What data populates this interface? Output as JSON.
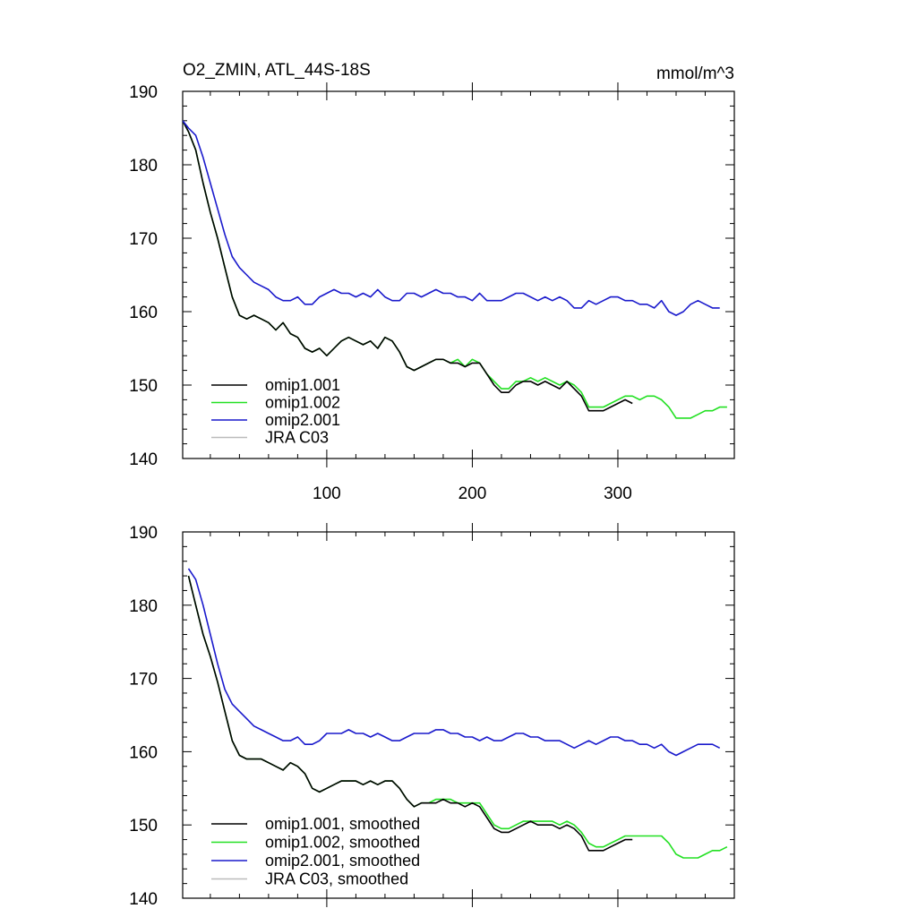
{
  "figure": {
    "title_left": "O2_ZMIN, ATL_44S-18S",
    "title_right": "mmol/m^3"
  },
  "colors": {
    "omip1.001": "#000000",
    "omip1.002": "#22e022",
    "omip2.001": "#1a1acc",
    "JRA C03": "#bbbbbb"
  },
  "chart_data": [
    {
      "type": "line",
      "title": "O2_ZMIN, ATL_44S-18S",
      "units": "mmol/m^3",
      "xlim": [
        1,
        380
      ],
      "ylim": [
        140,
        190
      ],
      "x_ticks": [
        100,
        200,
        300
      ],
      "x_tick_labels": [
        "100",
        "200",
        "300"
      ],
      "y_ticks": [
        140,
        150,
        160,
        170,
        180,
        190
      ],
      "y_tick_labels": [
        "140",
        "150",
        "160",
        "170",
        "180",
        "190"
      ],
      "legend_position": "bottom-left",
      "series": [
        {
          "name": "omip1.001",
          "color": "#000000",
          "x": [
            1,
            5,
            10,
            15,
            20,
            25,
            30,
            35,
            40,
            45,
            50,
            55,
            60,
            65,
            70,
            75,
            80,
            85,
            90,
            95,
            100,
            105,
            110,
            115,
            120,
            125,
            130,
            135,
            140,
            145,
            150,
            155,
            160,
            165,
            170,
            175,
            180,
            185,
            190,
            195,
            200,
            205,
            210,
            215,
            220,
            225,
            230,
            235,
            240,
            245,
            250,
            255,
            260,
            265,
            270,
            275,
            280,
            285,
            290,
            295,
            300,
            305,
            310
          ],
          "y": [
            186.0,
            184.5,
            182.0,
            177.5,
            173.5,
            170.0,
            166.0,
            162.0,
            159.5,
            159.0,
            159.5,
            159.0,
            158.5,
            157.5,
            158.5,
            157.0,
            156.5,
            155.0,
            154.5,
            155.0,
            154.0,
            155.0,
            156.0,
            156.5,
            156.0,
            155.5,
            156.0,
            155.0,
            156.5,
            156.0,
            154.5,
            152.5,
            152.0,
            152.5,
            153.0,
            153.5,
            153.5,
            153.0,
            153.0,
            152.5,
            153.0,
            153.0,
            151.5,
            150.0,
            149.0,
            149.0,
            150.0,
            150.5,
            150.5,
            150.0,
            150.5,
            150.0,
            149.5,
            150.5,
            149.5,
            148.5,
            146.5,
            146.5,
            146.5,
            147.0,
            147.5,
            148.0,
            147.5
          ]
        },
        {
          "name": "omip1.002",
          "color": "#22e022",
          "x": [
            1,
            5,
            10,
            15,
            20,
            25,
            30,
            35,
            40,
            45,
            50,
            55,
            60,
            65,
            70,
            75,
            80,
            85,
            90,
            95,
            100,
            105,
            110,
            115,
            120,
            125,
            130,
            135,
            140,
            145,
            150,
            155,
            160,
            165,
            170,
            175,
            180,
            185,
            190,
            195,
            200,
            205,
            210,
            215,
            220,
            225,
            230,
            235,
            240,
            245,
            250,
            255,
            260,
            265,
            270,
            275,
            280,
            285,
            290,
            295,
            300,
            305,
            310,
            315,
            320,
            325,
            330,
            335,
            340,
            345,
            350,
            355,
            360,
            365,
            370,
            375
          ],
          "y": [
            186.0,
            184.5,
            182.0,
            177.5,
            173.5,
            170.0,
            166.0,
            162.0,
            159.5,
            159.0,
            159.5,
            159.0,
            158.5,
            157.5,
            158.5,
            157.0,
            156.5,
            155.0,
            154.5,
            155.0,
            154.0,
            155.0,
            156.0,
            156.5,
            156.0,
            155.5,
            156.0,
            155.0,
            156.5,
            156.0,
            154.5,
            152.5,
            152.0,
            152.5,
            153.0,
            153.5,
            153.5,
            153.0,
            153.5,
            152.5,
            153.5,
            153.0,
            151.5,
            150.5,
            149.5,
            149.5,
            150.5,
            150.5,
            151.0,
            150.5,
            151.0,
            150.5,
            150.0,
            150.5,
            150.0,
            149.0,
            147.0,
            147.0,
            147.0,
            147.5,
            148.0,
            148.5,
            148.5,
            148.0,
            148.5,
            148.5,
            148.0,
            147.0,
            145.5,
            145.5,
            145.5,
            146.0,
            146.5,
            146.5,
            147.0,
            147.0
          ]
        },
        {
          "name": "omip2.001",
          "color": "#1a1acc",
          "x": [
            1,
            5,
            10,
            15,
            20,
            25,
            30,
            35,
            40,
            45,
            50,
            55,
            60,
            65,
            70,
            75,
            80,
            85,
            90,
            95,
            100,
            105,
            110,
            115,
            120,
            125,
            130,
            135,
            140,
            145,
            150,
            155,
            160,
            165,
            170,
            175,
            180,
            185,
            190,
            195,
            200,
            205,
            210,
            215,
            220,
            225,
            230,
            235,
            240,
            245,
            250,
            255,
            260,
            265,
            270,
            275,
            280,
            285,
            290,
            295,
            300,
            305,
            310,
            315,
            320,
            325,
            330,
            335,
            340,
            345,
            350,
            355,
            360,
            365,
            370
          ],
          "y": [
            186.0,
            185.0,
            184.0,
            181.0,
            177.5,
            174.0,
            170.5,
            167.5,
            166.0,
            165.0,
            164.0,
            163.5,
            163.0,
            162.0,
            161.5,
            161.5,
            162.0,
            161.0,
            161.0,
            162.0,
            162.5,
            163.0,
            162.5,
            162.5,
            162.0,
            162.5,
            162.0,
            163.0,
            162.0,
            161.5,
            161.5,
            162.5,
            162.5,
            162.0,
            162.5,
            163.0,
            162.5,
            162.5,
            162.0,
            162.0,
            161.5,
            162.5,
            161.5,
            161.5,
            161.5,
            162.0,
            162.5,
            162.5,
            162.0,
            161.5,
            162.0,
            161.5,
            162.0,
            161.5,
            160.5,
            160.5,
            161.5,
            161.0,
            161.5,
            162.0,
            162.0,
            161.5,
            161.5,
            161.0,
            161.0,
            160.5,
            161.5,
            160.0,
            159.5,
            160.0,
            161.0,
            161.5,
            161.0,
            160.5,
            160.5
          ]
        },
        {
          "name": "JRA C03",
          "color": "#bbbbbb",
          "x": [],
          "y": []
        }
      ]
    },
    {
      "type": "line",
      "title": "",
      "units": "",
      "xlim": [
        1,
        380
      ],
      "ylim": [
        140,
        190
      ],
      "x_ticks": [
        100,
        200,
        300
      ],
      "x_tick_labels": [],
      "y_ticks": [
        140,
        150,
        160,
        170,
        180,
        190
      ],
      "y_tick_labels": [
        "140",
        "150",
        "160",
        "170",
        "180",
        "190"
      ],
      "legend_position": "bottom-left",
      "series": [
        {
          "name": "omip1.001, smoothed",
          "color": "#000000",
          "x": [
            5,
            10,
            15,
            20,
            25,
            30,
            35,
            40,
            45,
            50,
            55,
            60,
            65,
            70,
            75,
            80,
            85,
            90,
            95,
            100,
            105,
            110,
            115,
            120,
            125,
            130,
            135,
            140,
            145,
            150,
            155,
            160,
            165,
            170,
            175,
            180,
            185,
            190,
            195,
            200,
            205,
            210,
            215,
            220,
            225,
            230,
            235,
            240,
            245,
            250,
            255,
            260,
            265,
            270,
            275,
            280,
            285,
            290,
            295,
            300,
            305,
            310
          ],
          "y": [
            184.0,
            180.0,
            176.0,
            173.0,
            169.5,
            165.5,
            161.5,
            159.5,
            159.0,
            159.0,
            159.0,
            158.5,
            158.0,
            157.5,
            158.5,
            158.0,
            157.0,
            155.0,
            154.5,
            155.0,
            155.5,
            156.0,
            156.0,
            156.0,
            155.5,
            156.0,
            155.5,
            156.0,
            156.0,
            155.0,
            153.5,
            152.5,
            153.0,
            153.0,
            153.0,
            153.5,
            153.0,
            153.0,
            152.5,
            153.0,
            152.5,
            151.0,
            149.5,
            149.0,
            149.0,
            149.5,
            150.0,
            150.5,
            150.0,
            150.0,
            150.0,
            149.5,
            150.0,
            149.5,
            148.5,
            146.5,
            146.5,
            146.5,
            147.0,
            147.5,
            148.0,
            148.0
          ]
        },
        {
          "name": "omip1.002, smoothed",
          "color": "#22e022",
          "x": [
            5,
            10,
            15,
            20,
            25,
            30,
            35,
            40,
            45,
            50,
            55,
            60,
            65,
            70,
            75,
            80,
            85,
            90,
            95,
            100,
            105,
            110,
            115,
            120,
            125,
            130,
            135,
            140,
            145,
            150,
            155,
            160,
            165,
            170,
            175,
            180,
            185,
            190,
            195,
            200,
            205,
            210,
            215,
            220,
            225,
            230,
            235,
            240,
            245,
            250,
            255,
            260,
            265,
            270,
            275,
            280,
            285,
            290,
            295,
            300,
            305,
            310,
            315,
            320,
            325,
            330,
            335,
            340,
            345,
            350,
            355,
            360,
            365,
            370,
            375
          ],
          "y": [
            184.0,
            180.0,
            176.0,
            173.0,
            169.5,
            165.5,
            161.5,
            159.5,
            159.0,
            159.0,
            159.0,
            158.5,
            158.0,
            157.5,
            158.5,
            158.0,
            157.0,
            155.0,
            154.5,
            155.0,
            155.5,
            156.0,
            156.0,
            156.0,
            155.5,
            156.0,
            155.5,
            156.0,
            156.0,
            155.0,
            153.5,
            152.5,
            153.0,
            153.0,
            153.5,
            153.5,
            153.5,
            153.0,
            153.0,
            153.0,
            153.0,
            151.5,
            150.0,
            149.5,
            149.5,
            150.0,
            150.5,
            150.5,
            150.5,
            150.5,
            150.5,
            150.0,
            150.5,
            150.0,
            149.0,
            147.5,
            147.0,
            147.0,
            147.5,
            148.0,
            148.5,
            148.5,
            148.5,
            148.5,
            148.5,
            148.5,
            147.5,
            146.0,
            145.5,
            145.5,
            145.5,
            146.0,
            146.5,
            146.5,
            147.0
          ]
        },
        {
          "name": "omip2.001, smoothed",
          "color": "#1a1acc",
          "x": [
            5,
            10,
            15,
            20,
            25,
            30,
            35,
            40,
            45,
            50,
            55,
            60,
            65,
            70,
            75,
            80,
            85,
            90,
            95,
            100,
            105,
            110,
            115,
            120,
            125,
            130,
            135,
            140,
            145,
            150,
            155,
            160,
            165,
            170,
            175,
            180,
            185,
            190,
            195,
            200,
            205,
            210,
            215,
            220,
            225,
            230,
            235,
            240,
            245,
            250,
            255,
            260,
            265,
            270,
            275,
            280,
            285,
            290,
            295,
            300,
            305,
            310,
            315,
            320,
            325,
            330,
            335,
            340,
            345,
            350,
            355,
            360,
            365,
            370
          ],
          "y": [
            185.0,
            183.5,
            180.0,
            176.0,
            172.0,
            168.5,
            166.5,
            165.5,
            164.5,
            163.5,
            163.0,
            162.5,
            162.0,
            161.5,
            161.5,
            162.0,
            161.0,
            161.0,
            161.5,
            162.5,
            162.5,
            162.5,
            163.0,
            162.5,
            162.5,
            162.0,
            162.5,
            162.0,
            161.5,
            161.5,
            162.0,
            162.5,
            162.5,
            162.5,
            163.0,
            163.0,
            162.5,
            162.5,
            162.0,
            162.0,
            161.5,
            162.0,
            161.5,
            161.5,
            162.0,
            162.5,
            162.5,
            162.0,
            162.0,
            161.5,
            161.5,
            161.5,
            161.0,
            160.5,
            161.0,
            161.5,
            161.0,
            161.5,
            162.0,
            162.0,
            161.5,
            161.5,
            161.0,
            161.0,
            160.5,
            161.0,
            160.0,
            159.5,
            160.0,
            160.5,
            161.0,
            161.0,
            161.0,
            160.5
          ]
        },
        {
          "name": "JRA C03, smoothed",
          "color": "#bbbbbb",
          "x": [],
          "y": []
        }
      ]
    }
  ]
}
